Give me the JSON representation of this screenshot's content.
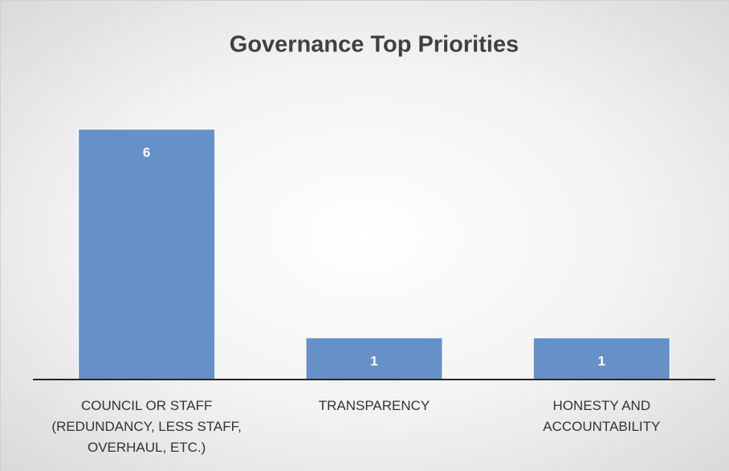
{
  "chart_data": {
    "type": "bar",
    "title": "Governance Top Priorities",
    "categories": [
      "COUNCIL OR STAFF (REDUNDANCY, LESS STAFF, OVERHAUL, ETC.)",
      "TRANSPARENCY",
      "HONESTY AND ACCOUNTABILITY"
    ],
    "values": [
      6,
      1,
      1
    ],
    "color": "#6590c8",
    "ylim": [
      0,
      7
    ]
  }
}
